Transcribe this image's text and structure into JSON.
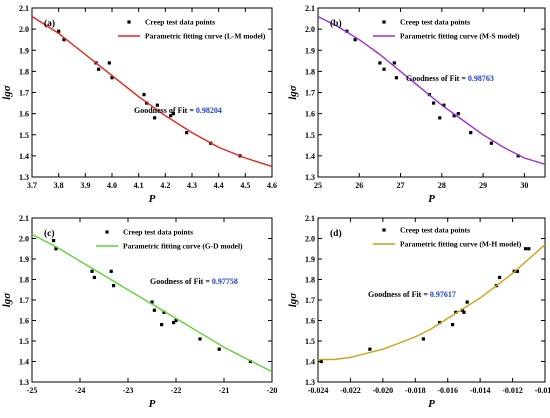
{
  "chart_data": [
    {
      "type": "scatter",
      "panel_label": "(a)",
      "xlabel": "P",
      "ylabel": "lgσ",
      "xlim": [
        3.7,
        4.6
      ],
      "ylim": [
        1.3,
        2.1
      ],
      "x_ticks": [
        3.7,
        3.8,
        3.9,
        4.0,
        4.1,
        4.2,
        4.3,
        4.4,
        4.5,
        4.6
      ],
      "x_tick_labels": [
        "3.7",
        "3.8",
        "3.9",
        "4.0",
        "4.1",
        "4.2",
        "4.3",
        "4.4",
        "4.5",
        "4.6"
      ],
      "y_ticks": [
        1.3,
        1.4,
        1.5,
        1.6,
        1.7,
        1.8,
        1.9,
        2.0,
        2.1
      ],
      "y_tick_labels": [
        "1.3",
        "1.4",
        "1.5",
        "1.6",
        "1.7",
        "1.8",
        "1.9",
        "2.0",
        "2.1"
      ],
      "legend_position": "top-right",
      "series": [
        {
          "name": "Creep test data points",
          "kind": "points",
          "color": "#000000",
          "x": [
            3.8,
            3.82,
            3.94,
            3.95,
            3.99,
            4.0,
            4.12,
            4.13,
            4.16,
            4.17,
            4.22,
            4.23,
            4.28,
            4.37,
            4.48
          ],
          "y": [
            1.99,
            1.95,
            1.84,
            1.81,
            1.84,
            1.77,
            1.69,
            1.65,
            1.58,
            1.64,
            1.59,
            1.6,
            1.51,
            1.46,
            1.4
          ]
        },
        {
          "name": "Parametric fitting curve (L-M model)",
          "kind": "curve",
          "color": "#e8231b",
          "x": [
            3.7,
            3.8,
            3.9,
            4.0,
            4.1,
            4.2,
            4.3,
            4.4,
            4.5,
            4.6
          ],
          "y": [
            2.06,
            1.98,
            1.88,
            1.78,
            1.68,
            1.59,
            1.51,
            1.44,
            1.39,
            1.35
          ]
        }
      ],
      "annotation_label": "Goodness of Fit = ",
      "annotation_value": "0.98204"
    },
    {
      "type": "scatter",
      "panel_label": "(b)",
      "xlabel": "P",
      "ylabel": "lgσ",
      "xlim": [
        25,
        30.5
      ],
      "ylim": [
        1.3,
        2.1
      ],
      "x_ticks": [
        25,
        26,
        27,
        28,
        29,
        30
      ],
      "x_tick_labels": [
        "25",
        "26",
        "27",
        "28",
        "29",
        "30"
      ],
      "y_ticks": [
        1.3,
        1.4,
        1.5,
        1.6,
        1.7,
        1.8,
        1.9,
        2.0,
        2.1
      ],
      "y_tick_labels": [
        "1.3",
        "1.4",
        "1.5",
        "1.6",
        "1.7",
        "1.8",
        "1.9",
        "2.0",
        "2.1"
      ],
      "legend_position": "top-right",
      "series": [
        {
          "name": "Creep test data points",
          "kind": "points",
          "color": "#000000",
          "x": [
            25.7,
            25.9,
            26.5,
            26.6,
            26.85,
            26.9,
            27.7,
            27.8,
            27.95,
            28.05,
            28.3,
            28.4,
            28.7,
            29.2,
            29.85
          ],
          "y": [
            1.99,
            1.95,
            1.84,
            1.81,
            1.84,
            1.77,
            1.69,
            1.65,
            1.58,
            1.64,
            1.59,
            1.6,
            1.51,
            1.46,
            1.4
          ]
        },
        {
          "name": "Parametric fitting curve (M-S model)",
          "kind": "curve",
          "color": "#9b30d9",
          "x": [
            25.0,
            25.5,
            26.0,
            26.5,
            27.0,
            27.5,
            28.0,
            28.5,
            29.0,
            29.5,
            30.0,
            30.5
          ],
          "y": [
            2.06,
            2.01,
            1.95,
            1.88,
            1.8,
            1.72,
            1.64,
            1.57,
            1.5,
            1.44,
            1.39,
            1.36
          ]
        }
      ],
      "annotation_label": "Goodness of Fit = ",
      "annotation_value": "0.98763"
    },
    {
      "type": "scatter",
      "panel_label": "(c)",
      "xlabel": "P",
      "ylabel": "lgσ",
      "xlim": [
        -25,
        -20
      ],
      "ylim": [
        1.3,
        2.1
      ],
      "x_ticks": [
        -25,
        -24,
        -23,
        -22,
        -21,
        -20
      ],
      "x_tick_labels": [
        "-25",
        "-24",
        "-23",
        "-22",
        "-21",
        "-20"
      ],
      "y_ticks": [
        1.3,
        1.4,
        1.5,
        1.6,
        1.7,
        1.8,
        1.9,
        2.0,
        2.1
      ],
      "y_tick_labels": [
        "1.3",
        "1.4",
        "1.5",
        "1.6",
        "1.7",
        "1.8",
        "1.9",
        "2.0",
        "2.1"
      ],
      "legend_position": "top-right",
      "series": [
        {
          "name": "Creep test data points",
          "kind": "points",
          "color": "#000000",
          "x": [
            -24.55,
            -24.5,
            -23.75,
            -23.7,
            -23.35,
            -23.3,
            -22.5,
            -22.45,
            -22.3,
            -22.25,
            -22.05,
            -22.0,
            -21.5,
            -21.1,
            -20.45
          ],
          "y": [
            1.99,
            1.95,
            1.84,
            1.81,
            1.84,
            1.77,
            1.69,
            1.65,
            1.58,
            1.64,
            1.59,
            1.6,
            1.51,
            1.46,
            1.4
          ]
        },
        {
          "name": "Parametric fitting curve (G-D model)",
          "kind": "curve",
          "color": "#5fd13a",
          "x": [
            -25.0,
            -24.5,
            -24.0,
            -23.5,
            -23.0,
            -22.5,
            -22.0,
            -21.5,
            -21.0,
            -20.5,
            -20.0
          ],
          "y": [
            2.02,
            1.96,
            1.89,
            1.82,
            1.75,
            1.68,
            1.61,
            1.54,
            1.47,
            1.41,
            1.35
          ]
        }
      ],
      "annotation_label": "Goodness of Fit = ",
      "annotation_value": "0.97758"
    },
    {
      "type": "scatter",
      "panel_label": "(d)",
      "xlabel": "P",
      "ylabel": "lgσ",
      "xlim": [
        -0.024,
        -0.01
      ],
      "ylim": [
        1.3,
        2.1
      ],
      "x_ticks": [
        -0.024,
        -0.022,
        -0.02,
        -0.018,
        -0.016,
        -0.014,
        -0.012,
        -0.01
      ],
      "x_tick_labels": [
        "-0.024",
        "-0.022",
        "-0.020",
        "-0.018",
        "-0.016",
        "-0.014",
        "-0.012",
        "-0.010"
      ],
      "y_ticks": [
        1.3,
        1.4,
        1.5,
        1.6,
        1.7,
        1.8,
        1.9,
        2.0,
        2.1
      ],
      "y_tick_labels": [
        "1.3",
        "1.4",
        "1.5",
        "1.6",
        "1.7",
        "1.8",
        "1.9",
        "2.0",
        "2.1"
      ],
      "legend_position": "top-right",
      "series": [
        {
          "name": "Creep test data points",
          "kind": "points",
          "color": "#000000",
          "x": [
            -0.0238,
            -0.0208,
            -0.0175,
            -0.0165,
            -0.0157,
            -0.0155,
            -0.0151,
            -0.015,
            -0.0148,
            -0.013,
            -0.0128,
            -0.0119,
            -0.0117,
            -0.0112,
            -0.011
          ],
          "y": [
            1.4,
            1.46,
            1.51,
            1.59,
            1.58,
            1.64,
            1.65,
            1.64,
            1.69,
            1.77,
            1.81,
            1.84,
            1.84,
            1.95,
            1.95
          ]
        },
        {
          "name": "Parametric fitting curve (M-H model)",
          "kind": "curve",
          "color": "#c9a21a",
          "x": [
            -0.024,
            -0.023,
            -0.022,
            -0.021,
            -0.02,
            -0.019,
            -0.018,
            -0.017,
            -0.016,
            -0.015,
            -0.014,
            -0.013,
            -0.012,
            -0.011,
            -0.01
          ],
          "y": [
            1.41,
            1.41,
            1.42,
            1.44,
            1.46,
            1.49,
            1.52,
            1.56,
            1.61,
            1.66,
            1.71,
            1.77,
            1.83,
            1.9,
            1.97
          ]
        }
      ],
      "annotation_label": "Goodness of Fit = ",
      "annotation_value": "0.97617"
    }
  ]
}
